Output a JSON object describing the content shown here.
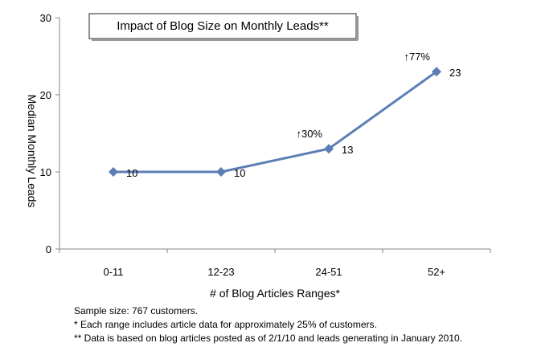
{
  "chart_data": {
    "type": "line",
    "title": "Impact of Blog Size on Monthly Leads**",
    "xlabel": "# of Blog Articles Ranges*",
    "ylabel": "Median Monthly Leads",
    "categories": [
      "0-11",
      "12-23",
      "24-51",
      "52+"
    ],
    "series": [
      {
        "values": [
          10,
          10,
          13,
          23
        ]
      }
    ],
    "data_labels": [
      "10",
      "10",
      "13",
      "23"
    ],
    "annotations": [
      {
        "category": "24-51",
        "text": "↑30%"
      },
      {
        "category": "52+",
        "text": "↑77%"
      }
    ],
    "yticks": [
      0,
      10,
      20,
      30
    ],
    "ylim": [
      0,
      30
    ],
    "grid": false,
    "legend": "none",
    "line_color": "#5b7fb5",
    "marker": "diamond"
  },
  "notes": {
    "line1": "Sample size: 767 customers.",
    "line2": "*  Each range includes article data for approximately 25% of customers.",
    "line3": "** Data is based on blog articles posted as of 2/1/10 and leads generating in January 2010."
  }
}
